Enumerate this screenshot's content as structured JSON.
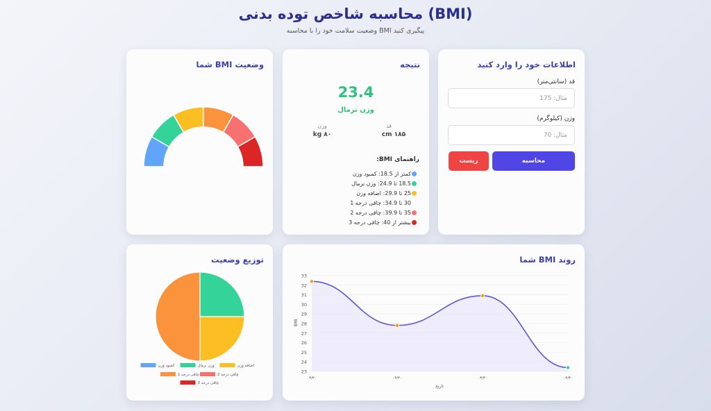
{
  "header": {
    "title": "محاسبه شاخص توده بدنی (BMI)",
    "subtitle": "وضعیت سلامت خود را با محاسبه BMI پیگیری کنید"
  },
  "form": {
    "title": "اطلاعات خود را وارد کنید",
    "height_label": "قد (سانتی‌متر)",
    "height_placeholder": "مثال: 175",
    "weight_label": "وزن (کیلوگرم)",
    "weight_placeholder": "مثال: 70",
    "calculate_label": "محاسبه",
    "reset_label": "ریست"
  },
  "result": {
    "title": "نتیجه",
    "bmi_value": "23.4",
    "status": "وزن نرمال",
    "height_label": "قد",
    "height_value": "cm ۱۸۵",
    "weight_label": "وزن",
    "weight_value": "kg ۸۰",
    "guide_title": "راهنمای BMI:",
    "guide": [
      {
        "text": "کمتر از 18.5: کمبود وزن",
        "color": "#60a5fa"
      },
      {
        "text": "18.5 تا 24.9: وزن نرمال",
        "color": "#34d399"
      },
      {
        "text": "25 تا 29.9: اضافه وزن",
        "color": "#fbbf24"
      },
      {
        "text": "30 تا 34.9: چاقی درجه 1",
        "color": ""
      },
      {
        "text": "35 تا 39.9: چاقی درجه 2",
        "color": "#f87171"
      },
      {
        "text": "بیشتر از 40: چاقی درجه 3",
        "color": "#dc2626"
      }
    ]
  },
  "gauge": {
    "title": "وضعیت BMI شما",
    "segment_colors": [
      "#60a5fa",
      "#34d399",
      "#fbbf24",
      "#fb923c",
      "#f87171",
      "#dc2626"
    ]
  },
  "chart_data": [
    {
      "type": "line",
      "title": "روند BMI شما",
      "x": [
        "۰۳/۳۰",
        "۰۳/۳۰",
        "۰۳/۳۰",
        "۰۳/۳۰"
      ],
      "values": [
        32.4,
        27.8,
        30.9,
        23.4
      ],
      "xlabel": "تاریخ",
      "ylabel": "BMI",
      "ylim": [
        23,
        33
      ],
      "yticks": [
        23,
        24,
        25,
        26,
        27,
        28,
        29,
        30,
        31,
        32,
        33
      ],
      "line_color": "#5b55e0",
      "fill_color": "#ebe9fb",
      "point_colors": [
        "#f59e0b",
        "#f59e0b",
        "#f59e0b",
        "#34d399"
      ]
    },
    {
      "type": "pie",
      "title": "توزیع وضعیت",
      "categories": [
        "کمبود وزن",
        "وزن نرمال",
        "اضافه وزن",
        "چاقی درجه 1",
        "چاقی درجه 2",
        "چاقی درجه 3"
      ],
      "values": [
        0,
        1,
        1,
        2,
        0,
        0
      ],
      "colors": [
        "#60a5fa",
        "#34d399",
        "#fbbf24",
        "#fb923c",
        "#f87171",
        "#dc2626"
      ]
    }
  ]
}
